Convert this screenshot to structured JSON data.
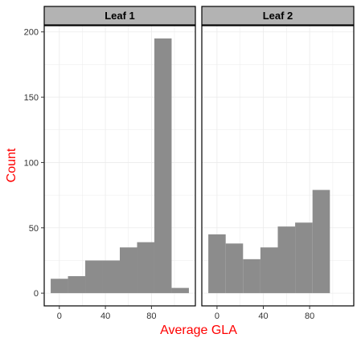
{
  "chart_data": {
    "type": "histogram",
    "facets": [
      {
        "label": "Leaf 1",
        "bars": [
          {
            "x0": -7.5,
            "x1": 7.5,
            "count": 11
          },
          {
            "x0": 7.5,
            "x1": 22.5,
            "count": 13
          },
          {
            "x0": 22.5,
            "x1": 37.5,
            "count": 25
          },
          {
            "x0": 37.5,
            "x1": 52.5,
            "count": 25
          },
          {
            "x0": 52.5,
            "x1": 67.5,
            "count": 35
          },
          {
            "x0": 67.5,
            "x1": 82.5,
            "count": 39
          },
          {
            "x0": 82.5,
            "x1": 97.5,
            "count": 195
          },
          {
            "x0": 97.5,
            "x1": 112.5,
            "count": 4
          }
        ]
      },
      {
        "label": "Leaf 2",
        "bars": [
          {
            "x0": -7.5,
            "x1": 7.5,
            "count": 45
          },
          {
            "x0": 7.5,
            "x1": 22.5,
            "count": 38
          },
          {
            "x0": 22.5,
            "x1": 37.5,
            "count": 26
          },
          {
            "x0": 37.5,
            "x1": 52.5,
            "count": 35
          },
          {
            "x0": 52.5,
            "x1": 67.5,
            "count": 51
          },
          {
            "x0": 67.5,
            "x1": 82.5,
            "count": 54
          },
          {
            "x0": 82.5,
            "x1": 97.5,
            "count": 79
          }
        ]
      }
    ],
    "xlabel": "Average GLA",
    "ylabel": "Count",
    "xticks": [
      0,
      40,
      80
    ],
    "yticks": [
      0,
      50,
      100,
      150,
      200
    ],
    "xlim": [
      -13.125,
      118.125
    ],
    "ylim": [
      -9.75,
      204.75
    ],
    "grid": true,
    "colors": {
      "bar": "#8c8c8c",
      "axis_title": "#ff0000",
      "strip_fill": "#b3b3b3",
      "grid": "#ebebeb"
    }
  }
}
